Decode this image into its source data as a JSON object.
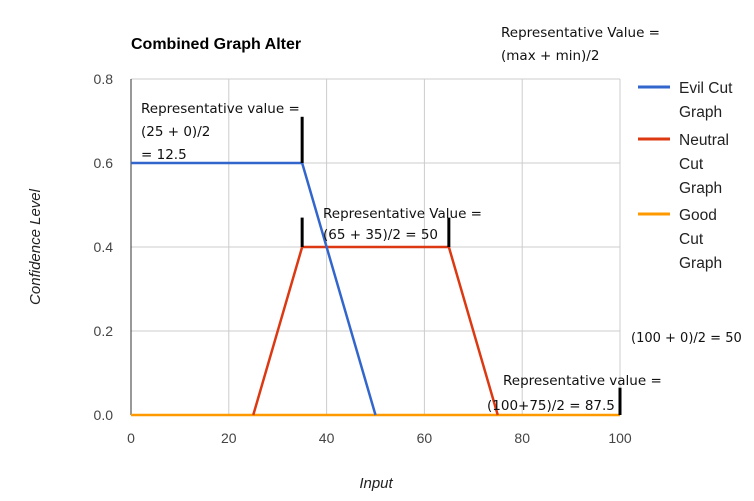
{
  "chart_data": {
    "type": "line",
    "title": "Combined Graph Alter",
    "xlabel": "Input",
    "ylabel": "Confidence Level",
    "xlim": [
      0,
      100
    ],
    "ylim": [
      0,
      0.8
    ],
    "x_ticks": [
      0,
      20,
      40,
      60,
      80,
      100
    ],
    "x_tick_labels": [
      "0",
      "20",
      "40",
      "60",
      "80",
      "100"
    ],
    "y_ticks": [
      0,
      0.2,
      0.4,
      0.6,
      0.8
    ],
    "y_tick_labels": [
      "0.0",
      "0.2",
      "0.4",
      "0.6",
      "0.8"
    ],
    "grid": true,
    "legend_position": "right",
    "series": [
      {
        "name": "Evil Cut Graph",
        "color": "#3366cc",
        "points": [
          [
            0,
            0.6
          ],
          [
            35,
            0.6
          ],
          [
            50,
            0.0
          ]
        ]
      },
      {
        "name": "Neutral Cut Graph",
        "color": "#dc3912",
        "points": [
          [
            25,
            0.0
          ],
          [
            35,
            0.4
          ],
          [
            65,
            0.4
          ],
          [
            75,
            0.0
          ]
        ]
      },
      {
        "name": "Good Cut Graph",
        "color": "#ff9900",
        "points": [
          [
            0,
            0.0
          ],
          [
            100,
            0.0
          ]
        ]
      }
    ],
    "markers": [
      {
        "x": 35,
        "y_from": 0.6,
        "y_to": 0.71
      },
      {
        "x": 35,
        "y_from": 0.4,
        "y_to": 0.47
      },
      {
        "x": 65,
        "y_from": 0.4,
        "y_to": 0.47
      },
      {
        "x": 100,
        "y_from": 0.0,
        "y_to": 0.065
      }
    ],
    "annotations": [
      {
        "lines": [
          "Representative Value =",
          "(max + min)/2"
        ]
      },
      {
        "lines": [
          "Representative value =",
          "(25 + 0)/2",
          "= 12.5"
        ]
      },
      {
        "lines": [
          "Representative Value =",
          "(65 + 35)/2 = 50"
        ]
      },
      {
        "lines": [
          "(100 + 0)/2 = 50"
        ]
      },
      {
        "lines": [
          "Representative value =",
          "(100+75)/2 = 87.5"
        ]
      }
    ]
  },
  "legend": {
    "items": [
      {
        "lines": [
          "Evil Cut",
          "Graph"
        ],
        "color": "#3366cc"
      },
      {
        "lines": [
          "Neutral",
          "Cut",
          "Graph"
        ],
        "color": "#dc3912"
      },
      {
        "lines": [
          "Good",
          "Cut",
          "Graph"
        ],
        "color": "#ff9900"
      }
    ]
  }
}
